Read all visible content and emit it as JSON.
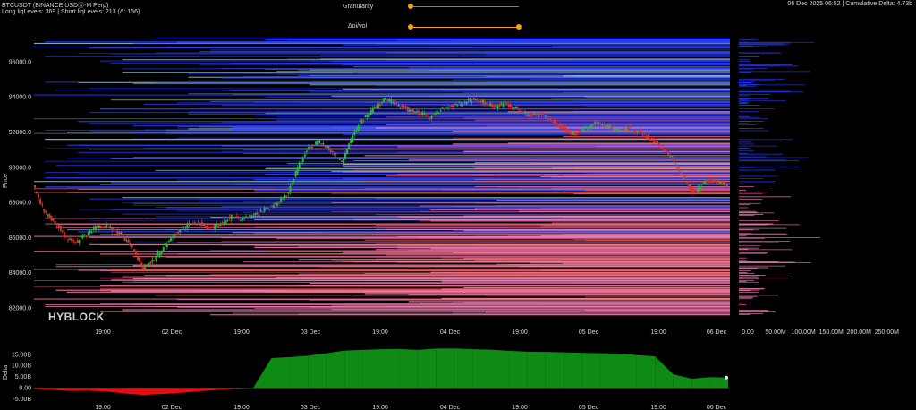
{
  "header": {
    "symbol": "BTCUSDT (BINANCE USDⓈ-M Perp)",
    "levels": "Long liqLevels: 369 | Short liqLevels: 213 (Δ: 156)",
    "info": "06 Dec 2025 06:52 | Cumulative Delta: 4.73b"
  },
  "controls": {
    "granularity_label": "Granularity",
    "granularity_value": 0.0,
    "oivol_label": "Δoi/vol",
    "oivol_range": [
      0.0,
      1.0
    ]
  },
  "watermark": "HYBLOCK",
  "colors": {
    "short_liq": "#2a3cff",
    "short_liq_light": "#8fb4c4",
    "long_liq": "#f57fb8",
    "long_liq_dark": "#e0574a",
    "candle_up": "#2fb34a",
    "candle_down": "#e0312a",
    "delta_pos": "#0f8a14",
    "delta_neg": "#e01010",
    "slider": "#f0a21a"
  },
  "chart_data": [
    {
      "type": "line",
      "ylabel": "Price",
      "ylim": [
        81000,
        97500
      ],
      "yticks": [
        "82000.0",
        "84000.0",
        "86000.0",
        "88000.0",
        "90000.0",
        "92000.0",
        "94000.0",
        "96000.0"
      ],
      "xticks": [
        "19:00",
        "02 Dec",
        "19:00",
        "03 Dec",
        "19:00",
        "04 Dec",
        "19:00",
        "05 Dec",
        "19:00",
        "06 Dec"
      ],
      "series": [
        {
          "values": [
            89000,
            87500,
            86800,
            86000,
            85800,
            86300,
            86700,
            86600,
            86200,
            85400,
            84300,
            84800,
            85600,
            86300,
            86700,
            86900,
            86500,
            86800,
            87200,
            87000,
            87300,
            87600,
            87900,
            88400,
            90000,
            91200,
            91500,
            91000,
            90300,
            91800,
            92800,
            93400,
            93900,
            93600,
            93300,
            93100,
            92900,
            93300,
            93500,
            93700,
            93900,
            93700,
            93500,
            93600,
            93300,
            93000,
            93100,
            92700,
            92300,
            91900,
            92200,
            92500,
            92400,
            92100,
            92200,
            92000,
            91600,
            91200,
            90500,
            89400,
            88500,
            89300,
            89200,
            89000
          ]
        }
      ],
      "grid": false
    },
    {
      "type": "bar",
      "xlabel": "",
      "ylabel": "",
      "xticks": [
        "0.00",
        "50.00M",
        "100.00M",
        "150.00M",
        "200.00M",
        "250.00M"
      ],
      "xlim": [
        0,
        280000000
      ]
    },
    {
      "type": "area",
      "ylabel": "Delta",
      "ylim": [
        -5500000000,
        20000000000
      ],
      "yticks": [
        "15.00B",
        "10.00B",
        "5.00B",
        "0.00",
        "-5.00B"
      ],
      "xticks": [
        "19:00",
        "02 Dec",
        "19:00",
        "03 Dec",
        "19:00",
        "04 Dec",
        "19:00",
        "05 Dec",
        "19:00",
        "06 Dec"
      ],
      "series": [
        {
          "values": [
            -400000000,
            -900000000,
            -1300000000,
            -1200000000,
            -1600000000,
            -2500000000,
            -3100000000,
            -2700000000,
            -2200000000,
            -1500000000,
            -900000000,
            -300000000,
            100000000,
            13500000000,
            14000000000,
            14600000000,
            15700000000,
            16900000000,
            17200000000,
            17500000000,
            17600000000,
            17200000000,
            17800000000,
            17900000000,
            17500000000,
            17300000000,
            16800000000,
            16400000000,
            16300000000,
            16100000000,
            15900000000,
            15700000000,
            15600000000,
            14900000000,
            14300000000,
            6200000000,
            4200000000,
            4900000000,
            4730000000
          ]
        }
      ]
    }
  ]
}
